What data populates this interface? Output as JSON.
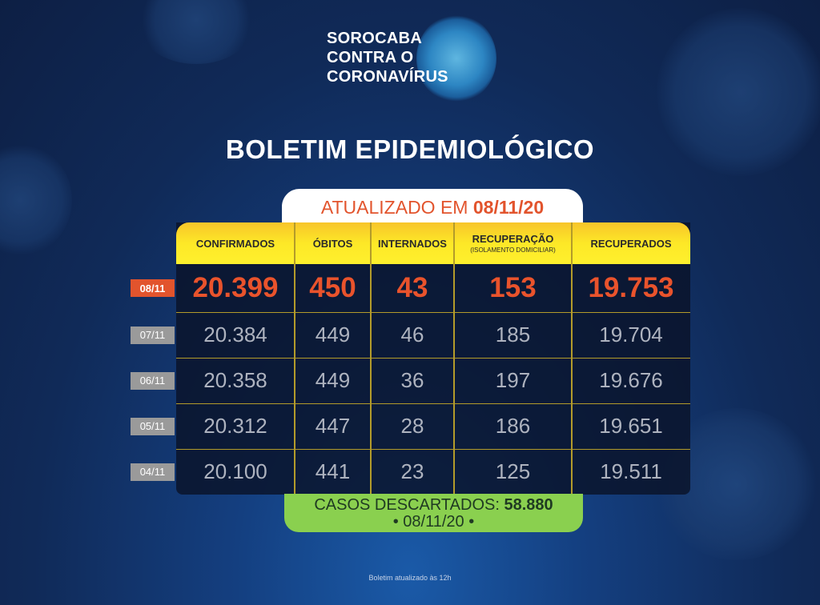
{
  "logo": {
    "line1": "SOROCABA",
    "line2": "CONTRA O",
    "line3": "CORONAVÍRUS"
  },
  "title": "BOLETIM EPIDEMIOLÓGICO",
  "updated": {
    "prefix": "ATUALIZADO EM",
    "date": "08/11/20"
  },
  "columns": [
    {
      "label": "CONFIRMADOS",
      "sub": ""
    },
    {
      "label": "ÓBITOS",
      "sub": ""
    },
    {
      "label": "INTERNADOS",
      "sub": ""
    },
    {
      "label": "RECUPERAÇÃO",
      "sub": "(ISOLAMENTO DOMICILIAR)"
    },
    {
      "label": "RECUPERADOS",
      "sub": ""
    }
  ],
  "rows": [
    {
      "date": "08/11",
      "values": [
        "20.399",
        "450",
        "43",
        "153",
        "19.753"
      ]
    },
    {
      "date": "07/11",
      "values": [
        "20.384",
        "449",
        "46",
        "185",
        "19.704"
      ]
    },
    {
      "date": "06/11",
      "values": [
        "20.358",
        "449",
        "36",
        "197",
        "19.676"
      ]
    },
    {
      "date": "05/11",
      "values": [
        "20.312",
        "447",
        "28",
        "186",
        "19.651"
      ]
    },
    {
      "date": "04/11",
      "values": [
        "20.100",
        "441",
        "23",
        "125",
        "19.511"
      ]
    }
  ],
  "discarded": {
    "label": "CASOS DESCARTADOS:",
    "value": "58.880",
    "date": "• 08/11/20 •"
  },
  "footer": "Boletim atualizado às 12h",
  "colors": {
    "accent": "#e2542d",
    "header": "#fde827",
    "green": "#8ad04f",
    "background": "#102a58"
  }
}
